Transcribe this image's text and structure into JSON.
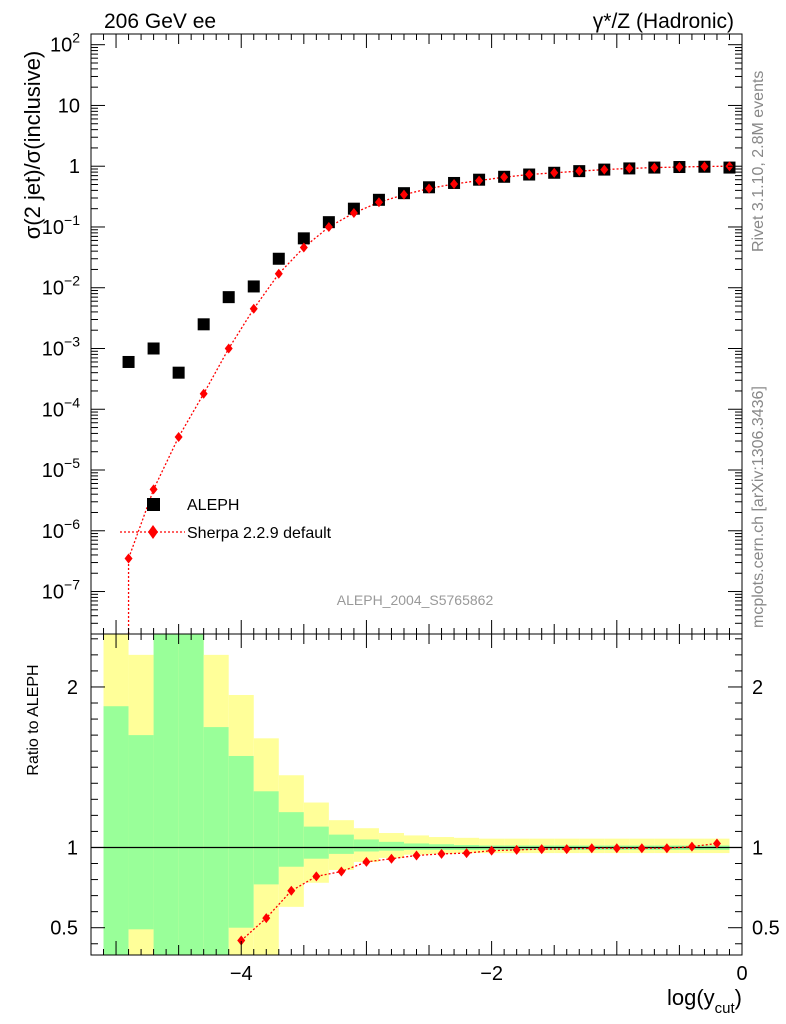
{
  "header": {
    "left": "206 GeV ee",
    "right": "γ*/Z (Hadronic)"
  },
  "side_labels": {
    "rivet": "Rivet 3.1.10,  2.8M events",
    "mcplots": "mcplots.cern.ch [arXiv:1306.3436]"
  },
  "watermark": "ALEPH_2004_S5765862",
  "colors": {
    "data": "#000000",
    "mc": "#ff0000",
    "band_inner": "#99ff99",
    "band_outer": "#ffff99"
  },
  "chart_data": [
    {
      "type": "scatter",
      "ylabel": "σ(2 jet)/σ(inclusive)",
      "yscale": "log",
      "ylim": [
        2e-08,
        150
      ],
      "xlim": [
        -5.2,
        0
      ],
      "grid": false,
      "legend_position": "lower-left",
      "yticks": [
        {
          "value": 1e-07,
          "base": "10",
          "exp": "−7"
        },
        {
          "value": 1e-06,
          "base": "10",
          "exp": "−6"
        },
        {
          "value": 1e-05,
          "base": "10",
          "exp": "−5"
        },
        {
          "value": 0.0001,
          "base": "10",
          "exp": "−4"
        },
        {
          "value": 0.001,
          "base": "10",
          "exp": "−3"
        },
        {
          "value": 0.01,
          "base": "10",
          "exp": "−2"
        },
        {
          "value": 0.1,
          "base": "10",
          "exp": "−1"
        },
        {
          "value": 1,
          "base": "1",
          "exp": ""
        },
        {
          "value": 10,
          "base": "10",
          "exp": ""
        },
        {
          "value": 100,
          "base": "10",
          "exp": "2"
        }
      ],
      "series": [
        {
          "name": "ALEPH",
          "marker": "square",
          "x": [
            -4.9,
            -4.7,
            -4.5,
            -4.3,
            -4.1,
            -3.9,
            -3.7,
            -3.5,
            -3.3,
            -3.1,
            -2.9,
            -2.7,
            -2.5,
            -2.3,
            -2.1,
            -1.9,
            -1.7,
            -1.5,
            -1.3,
            -1.1,
            -0.9,
            -0.7,
            -0.5,
            -0.3,
            -0.1
          ],
          "y": [
            0.0006,
            0.001,
            0.0004,
            0.0025,
            0.007,
            0.0105,
            0.03,
            0.065,
            0.12,
            0.2,
            0.28,
            0.36,
            0.45,
            0.53,
            0.6,
            0.67,
            0.73,
            0.78,
            0.83,
            0.88,
            0.92,
            0.95,
            0.97,
            0.98,
            0.95
          ]
        },
        {
          "name": "Sherpa 2.2.9 default",
          "marker": "diamond",
          "x": [
            -4.9,
            -4.7,
            -4.5,
            -4.3,
            -4.1,
            -3.9,
            -3.7,
            -3.5,
            -3.3,
            -3.1,
            -2.9,
            -2.7,
            -2.5,
            -2.3,
            -2.1,
            -1.9,
            -1.7,
            -1.5,
            -1.3,
            -1.1,
            -0.9,
            -0.7,
            -0.5,
            -0.3,
            -0.1
          ],
          "y": [
            3.5e-07,
            4.8e-06,
            3.5e-05,
            0.00018,
            0.001,
            0.0045,
            0.017,
            0.046,
            0.1,
            0.17,
            0.255,
            0.34,
            0.43,
            0.51,
            0.58,
            0.66,
            0.73,
            0.78,
            0.83,
            0.88,
            0.92,
            0.95,
            0.97,
            0.99,
            1.0
          ]
        }
      ]
    },
    {
      "type": "line",
      "ylabel": "Ratio to ALEPH",
      "xlabel": "log(y",
      "xlabel_sub": "cut",
      "xlabel_close": ")",
      "xlim": [
        -5.2,
        0
      ],
      "ylim": [
        0.33,
        2.33
      ],
      "xticks": [
        {
          "value": -4,
          "label": "−4"
        },
        {
          "value": -2,
          "label": "−2"
        },
        {
          "value": 0,
          "label": "0"
        }
      ],
      "yticks": [
        {
          "value": 0.5,
          "label": "0.5"
        },
        {
          "value": 1,
          "label": "1"
        },
        {
          "value": 2,
          "label": "2"
        }
      ],
      "bins": [
        -5.1,
        -4.9,
        -4.7,
        -4.5,
        -4.3,
        -4.1,
        -3.9,
        -3.7,
        -3.5,
        -3.3,
        -3.1,
        -2.9,
        -2.7,
        -2.5,
        -2.3,
        -2.1,
        -1.9,
        -1.7,
        -1.5,
        -1.3,
        -1.1,
        -0.9,
        -0.7,
        -0.5,
        -0.3,
        -0.1
      ],
      "band_inner": {
        "lo": [
          0.3,
          0.49,
          0.3,
          0.3,
          0.3,
          0.5,
          0.77,
          0.88,
          0.93,
          0.96,
          0.975,
          0.98,
          0.985,
          0.985,
          0.985,
          0.985,
          0.985,
          0.985,
          0.985,
          0.985,
          0.985,
          0.985,
          0.985,
          0.985,
          0.985
        ],
        "hi": [
          1.88,
          1.7,
          2.4,
          2.4,
          1.75,
          1.57,
          1.35,
          1.22,
          1.13,
          1.08,
          1.05,
          1.035,
          1.025,
          1.02,
          1.015,
          1.012,
          1.012,
          1.012,
          1.012,
          1.012,
          1.012,
          1.012,
          1.012,
          1.012,
          1.012
        ]
      },
      "band_outer": {
        "lo": [
          0.3,
          0.3,
          0.3,
          0.3,
          0.3,
          0.3,
          0.3,
          0.63,
          0.78,
          0.86,
          0.91,
          0.935,
          0.955,
          0.96,
          0.965,
          0.965,
          0.965,
          0.965,
          0.965,
          0.965,
          0.965,
          0.965,
          0.965,
          0.965,
          0.965
        ],
        "hi": [
          2.4,
          2.2,
          2.4,
          2.4,
          2.2,
          1.95,
          1.68,
          1.45,
          1.28,
          1.17,
          1.12,
          1.09,
          1.075,
          1.065,
          1.06,
          1.055,
          1.055,
          1.055,
          1.055,
          1.055,
          1.055,
          1.055,
          1.055,
          1.055,
          1.055
        ]
      },
      "series": [
        {
          "name": "Sherpa 2.2.9 default",
          "x": [
            -4.0,
            -3.8,
            -3.6,
            -3.4,
            -3.2,
            -3.0,
            -2.8,
            -2.6,
            -2.4,
            -2.2,
            -2.0,
            -1.8,
            -1.6,
            -1.4,
            -1.2,
            -1.0,
            -0.8,
            -0.6,
            -0.4,
            -0.2
          ],
          "y": [
            0.42,
            0.56,
            0.73,
            0.82,
            0.85,
            0.91,
            0.93,
            0.95,
            0.96,
            0.965,
            0.98,
            0.985,
            0.99,
            0.99,
            0.995,
            0.995,
            0.995,
            0.995,
            1.005,
            1.025
          ]
        }
      ]
    }
  ]
}
